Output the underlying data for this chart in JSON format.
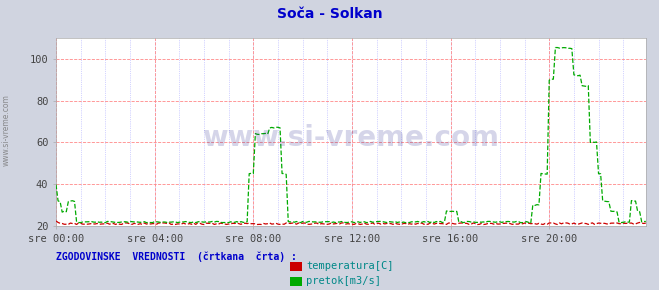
{
  "title": "Soča - Solkan",
  "title_color": "#0000cc",
  "bg_color": "#d0d4e0",
  "plot_bg_color": "#ffffff",
  "grid_color_major": "#ff8888",
  "grid_color_minor": "#aaaaff",
  "xlim": [
    0,
    287
  ],
  "ylim": [
    20,
    110
  ],
  "yticks": [
    20,
    40,
    60,
    80,
    100
  ],
  "xtick_labels": [
    "sre 00:00",
    "sre 04:00",
    "sre 08:00",
    "sre 12:00",
    "sre 16:00",
    "sre 20:00"
  ],
  "xtick_positions": [
    0,
    48,
    96,
    144,
    192,
    240
  ],
  "watermark_text": "www.si-vreme.com",
  "legend_title": "ZGODOVINSKE  VREDNOSTI  (črtkana  črta) :",
  "legend_items": [
    "temperatura[C]",
    "pretok[m3/s]"
  ],
  "legend_colors": [
    "#cc0000",
    "#00aa00"
  ],
  "temp_color": "#cc0000",
  "flow_color": "#00aa00",
  "sidebar_text": "www.si-vreme.com",
  "sidebar_color": "#777777"
}
